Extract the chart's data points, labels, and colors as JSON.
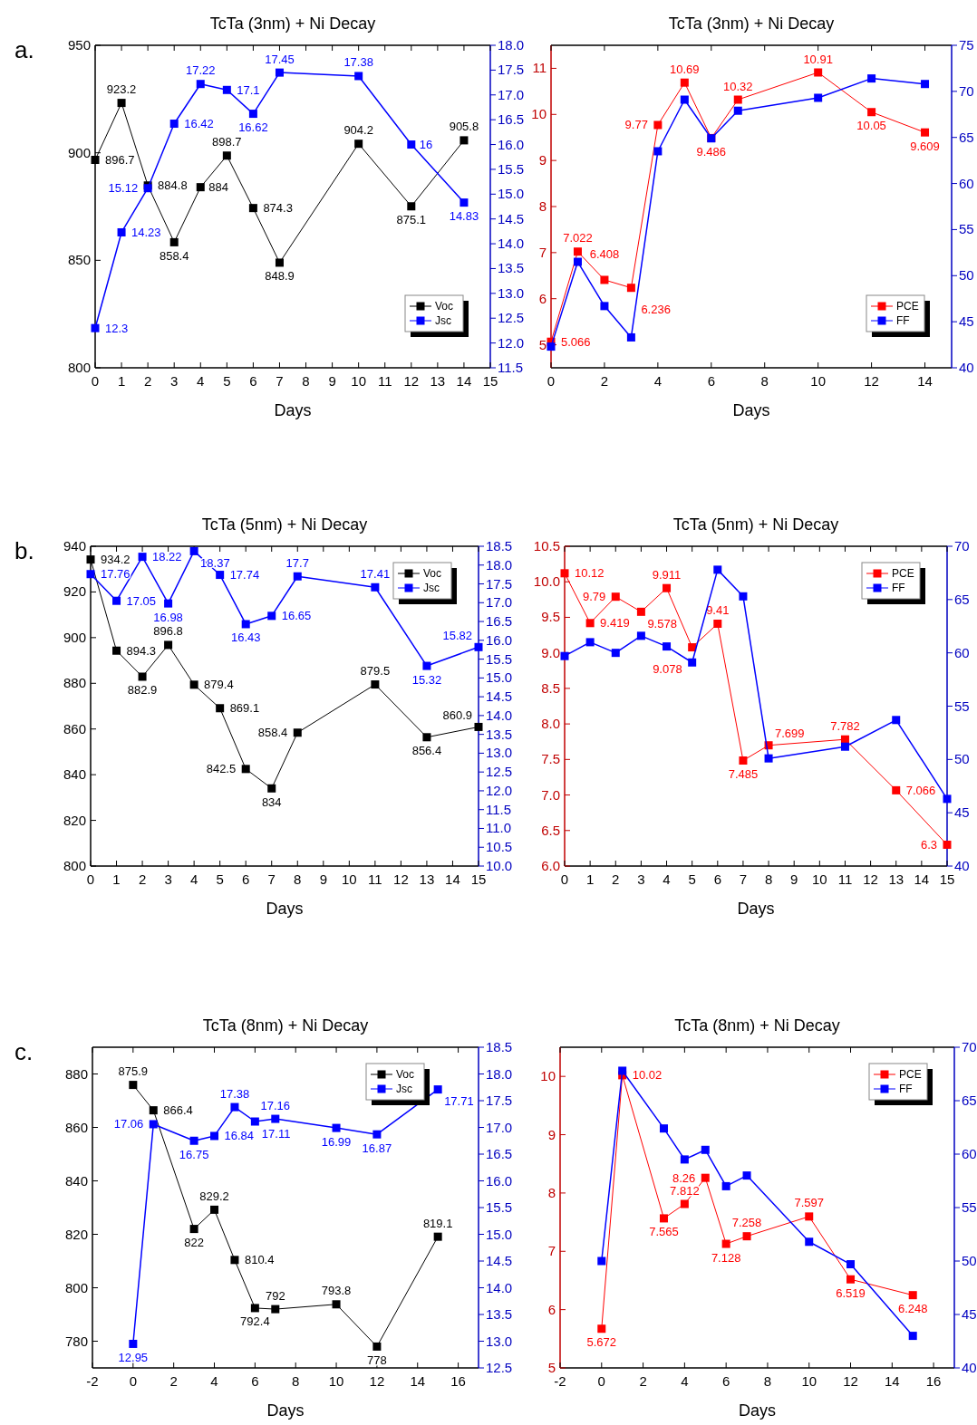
{
  "chart_data": [
    {
      "type": "line",
      "title": "TcTa (3nm) + Ni Decay",
      "xlabel": "Days",
      "annotations": [
        "a."
      ],
      "xlim": [
        0,
        15
      ],
      "xticks": [
        0,
        1,
        2,
        3,
        4,
        5,
        6,
        7,
        8,
        9,
        10,
        11,
        12,
        13,
        14,
        15
      ],
      "ylim": [
        800,
        950
      ],
      "yticks": [
        800,
        850,
        900,
        950
      ],
      "y2lim": [
        11.5,
        18
      ],
      "y2ticks": [
        11.5,
        {
          "value": 12,
          "label": "12.0"
        },
        12.5,
        {
          "value": 13,
          "label": "13.0"
        },
        13.5,
        {
          "value": 14,
          "label": "14.0"
        },
        14.5,
        {
          "value": 15,
          "label": "15.0"
        },
        15.5,
        {
          "value": 16,
          "label": "16.0"
        },
        16.5,
        {
          "value": 17,
          "label": "17.0"
        },
        17.5,
        {
          "value": 18,
          "label": "18.0"
        }
      ],
      "legend": "bottom right",
      "marker": "square",
      "series": [
        {
          "name": "Voc",
          "color": "#000000",
          "x": [
            0,
            1,
            2,
            3,
            4,
            5,
            6,
            7,
            10,
            12,
            14
          ],
          "values": [
            896.7,
            923.2,
            884.8,
            858.4,
            884,
            898.7,
            874.3,
            848.9,
            904.2,
            875.1,
            905.8
          ],
          "value_labels": [
            "896.7",
            "923.2",
            "884.8",
            "858.4",
            "884",
            "898.7",
            "874.3",
            "848.9",
            "904.2",
            "875.1",
            "905.8"
          ]
        },
        {
          "name": "Jsc",
          "color": "#0000ff",
          "axis": "y2",
          "x": [
            0,
            1,
            2,
            3,
            4,
            5,
            6,
            7,
            10,
            12,
            14
          ],
          "values": [
            12.3,
            14.23,
            15.12,
            16.42,
            17.22,
            17.1,
            16.62,
            17.45,
            17.38,
            16,
            14.83
          ],
          "value_labels": [
            "12.3",
            "14.23",
            "15.12",
            "16.42",
            "17.22",
            "17.1",
            "16.62",
            "17.45",
            "17.38",
            "16",
            "14.83"
          ]
        }
      ]
    },
    {
      "type": "line",
      "title": "TcTa (3nm) + Ni Decay",
      "xlabel": "Days",
      "xlim": [
        0,
        15
      ],
      "xticks": [
        0,
        2,
        4,
        6,
        8,
        10,
        12,
        14
      ],
      "ylim": [
        4.5,
        11.5
      ],
      "yticks": [
        5,
        6,
        7,
        8,
        9,
        10,
        11
      ],
      "y2lim": [
        40,
        75
      ],
      "y2ticks": [
        40,
        45,
        50,
        55,
        60,
        65,
        70,
        75
      ],
      "legend": "bottom right",
      "marker": "square",
      "series": [
        {
          "name": "PCE",
          "color": "#ff0000",
          "x": [
            0,
            1,
            2,
            3,
            4,
            5,
            6,
            7,
            10,
            12,
            14
          ],
          "values": [
            5.066,
            7.022,
            6.408,
            6.236,
            9.77,
            10.69,
            9.486,
            10.32,
            10.91,
            10.05,
            9.609
          ],
          "value_labels": [
            "5.066",
            "7.022",
            "6.408",
            "6.236",
            "9.77",
            "10.69",
            "9.486",
            "10.32",
            "10.91",
            "10.05",
            "9.609"
          ]
        },
        {
          "name": "FF",
          "color": "#0000ff",
          "axis": "y2",
          "x": [
            0,
            1,
            2,
            3,
            4,
            5,
            6,
            7,
            10,
            12,
            14
          ],
          "values": [
            42.3,
            51.5,
            46.7,
            43.3,
            63.5,
            69.1,
            64.9,
            67.9,
            69.3,
            71.4,
            70.8
          ]
        }
      ]
    },
    {
      "type": "line",
      "title": "TcTa (5nm) + Ni Decay",
      "xlabel": "Days",
      "annotations": [
        "b."
      ],
      "xlim": [
        0,
        15
      ],
      "xticks": [
        0,
        1,
        2,
        3,
        4,
        5,
        6,
        7,
        8,
        9,
        10,
        11,
        12,
        13,
        14,
        15
      ],
      "ylim": [
        800,
        940
      ],
      "yticks": [
        800,
        820,
        840,
        860,
        880,
        900,
        920,
        940
      ],
      "y2lim": [
        10,
        18.5
      ],
      "y2ticks": [
        {
          "value": 10,
          "label": "10.0"
        },
        10.5,
        {
          "value": 11,
          "label": "11.0"
        },
        11.5,
        {
          "value": 12,
          "label": "12.0"
        },
        12.5,
        {
          "value": 13,
          "label": "13.0"
        },
        13.5,
        {
          "value": 14,
          "label": "14.0"
        },
        14.5,
        {
          "value": 15,
          "label": "15.0"
        },
        15.5,
        {
          "value": 16,
          "label": "16.0"
        },
        16.5,
        {
          "value": 17,
          "label": "17.0"
        },
        17.5,
        {
          "value": 18,
          "label": "18.0"
        },
        18.5
      ],
      "legend": "top right",
      "marker": "square",
      "series": [
        {
          "name": "Voc",
          "color": "#000000",
          "x": [
            0,
            1,
            2,
            3,
            4,
            5,
            6,
            7,
            8,
            11,
            13,
            15
          ],
          "values": [
            934.2,
            894.3,
            882.9,
            896.8,
            879.4,
            869.1,
            842.5,
            834,
            858.4,
            879.5,
            856.4,
            860.9
          ],
          "value_labels": [
            "934.2",
            "894.3",
            "882.9",
            "896.8",
            "879.4",
            "869.1",
            "842.5",
            "834",
            "858.4",
            "879.5",
            "856.4",
            "860.9"
          ]
        },
        {
          "name": "Jsc",
          "color": "#0000ff",
          "axis": "y2",
          "x": [
            0,
            1,
            2,
            3,
            4,
            5,
            6,
            7,
            8,
            11,
            13,
            15
          ],
          "values": [
            17.76,
            17.05,
            18.22,
            16.98,
            18.37,
            17.74,
            16.43,
            16.65,
            17.7,
            17.41,
            15.32,
            15.82
          ],
          "value_labels": [
            "17.76",
            "17.05",
            "18.22",
            "16.98",
            "18.37",
            "17.74",
            "16.43",
            "16.65",
            "17.7",
            "17.41",
            "15.32",
            "15.82"
          ]
        }
      ]
    },
    {
      "type": "line",
      "title": "TcTa (5nm) + Ni Decay",
      "xlabel": "Days",
      "xlim": [
        0,
        15
      ],
      "xticks": [
        0,
        1,
        2,
        3,
        4,
        5,
        6,
        7,
        8,
        9,
        10,
        11,
        12,
        13,
        14,
        15
      ],
      "ylim": [
        6,
        10.5
      ],
      "yticks": [
        {
          "value": 6,
          "label": "6.0"
        },
        6.5,
        {
          "value": 7,
          "label": "7.0"
        },
        7.5,
        {
          "value": 8,
          "label": "8.0"
        },
        8.5,
        {
          "value": 9,
          "label": "9.0"
        },
        9.5,
        {
          "value": 10,
          "label": "10.0"
        },
        10.5
      ],
      "y2lim": [
        40,
        70
      ],
      "y2ticks": [
        40,
        45,
        50,
        55,
        60,
        65,
        70
      ],
      "legend": "top right",
      "marker": "square",
      "series": [
        {
          "name": "PCE",
          "color": "#ff0000",
          "x": [
            0,
            1,
            2,
            3,
            4,
            5,
            6,
            7,
            8,
            11,
            13,
            15
          ],
          "values": [
            10.12,
            9.419,
            9.79,
            9.578,
            9.911,
            9.078,
            9.41,
            7.485,
            7.699,
            7.782,
            7.066,
            6.3
          ],
          "value_labels": [
            "10.12",
            "9.419",
            "9.79",
            "9.578",
            "9.911",
            "9.078",
            "9.41",
            "7.485",
            "7.699",
            "7.782",
            "7.066",
            "6.3"
          ]
        },
        {
          "name": "FF",
          "color": "#0000ff",
          "axis": "y2",
          "x": [
            0,
            1,
            2,
            3,
            4,
            5,
            6,
            7,
            8,
            11,
            13,
            15
          ],
          "values": [
            59.7,
            61.0,
            60.0,
            61.6,
            60.6,
            59.1,
            67.8,
            65.3,
            50.1,
            51.2,
            53.7,
            46.3
          ]
        }
      ]
    },
    {
      "type": "line",
      "title": "TcTa (8nm) + Ni Decay",
      "xlabel": "Days",
      "annotations": [
        "c."
      ],
      "xlim": [
        -2,
        17
      ],
      "xticks": [
        -2,
        0,
        2,
        4,
        6,
        8,
        10,
        12,
        14,
        16
      ],
      "ylim": [
        770,
        890
      ],
      "yticks": [
        780,
        800,
        820,
        840,
        860,
        880
      ],
      "y2lim": [
        12.5,
        18.5
      ],
      "y2ticks": [
        12.5,
        {
          "value": 13,
          "label": "13.0"
        },
        13.5,
        {
          "value": 14,
          "label": "14.0"
        },
        14.5,
        {
          "value": 15,
          "label": "15.0"
        },
        15.5,
        {
          "value": 16,
          "label": "16.0"
        },
        16.5,
        {
          "value": 17,
          "label": "17.0"
        },
        17.5,
        {
          "value": 18,
          "label": "18.0"
        },
        18.5
      ],
      "legend": "top right",
      "marker": "square",
      "series": [
        {
          "name": "Voc",
          "color": "#000000",
          "x": [
            0,
            1,
            3,
            4,
            5,
            6,
            7,
            10,
            12,
            15
          ],
          "values": [
            875.9,
            866.4,
            822,
            829.2,
            810.4,
            792.4,
            792,
            793.8,
            778,
            819.1
          ],
          "value_labels": [
            "875.9",
            "866.4",
            "822",
            "829.2",
            "810.4",
            "792.4",
            "792",
            "793.8",
            "778",
            "819.1"
          ]
        },
        {
          "name": "Jsc",
          "color": "#0000ff",
          "axis": "y2",
          "x": [
            0,
            1,
            3,
            4,
            5,
            6,
            7,
            10,
            12,
            15
          ],
          "values": [
            12.95,
            17.06,
            16.75,
            16.84,
            17.38,
            17.11,
            17.16,
            16.99,
            16.87,
            17.71
          ],
          "value_labels": [
            "12.95",
            "17.06",
            "16.75",
            "16.84",
            "17.38",
            "17.11",
            "17.16",
            "16.99",
            "16.87",
            "17.71"
          ]
        }
      ]
    },
    {
      "type": "line",
      "title": "TcTa (8nm) + Ni Decay",
      "xlabel": "Days",
      "xlim": [
        -2,
        17
      ],
      "xticks": [
        -2,
        0,
        2,
        4,
        6,
        8,
        10,
        12,
        14,
        16
      ],
      "ylim": [
        5,
        10.5
      ],
      "yticks": [
        5,
        6,
        7,
        8,
        9,
        10
      ],
      "y2lim": [
        40,
        70
      ],
      "y2ticks": [
        40,
        45,
        50,
        55,
        60,
        65,
        70
      ],
      "legend": "top right",
      "marker": "square",
      "series": [
        {
          "name": "PCE",
          "color": "#ff0000",
          "x": [
            0,
            1,
            3,
            4,
            5,
            6,
            7,
            10,
            12,
            15
          ],
          "values": [
            5.672,
            10.02,
            7.565,
            7.812,
            8.26,
            7.128,
            7.258,
            7.597,
            6.519,
            6.248
          ],
          "value_labels": [
            "5.672",
            "10.02",
            "7.565",
            "7.812",
            "8.26",
            "7.128",
            "7.258",
            "7.597",
            "6.519",
            "6.248"
          ]
        },
        {
          "name": "FF",
          "color": "#0000ff",
          "axis": "y2",
          "x": [
            0,
            1,
            3,
            4,
            5,
            6,
            7,
            10,
            12,
            15
          ],
          "values": [
            50.0,
            67.8,
            62.4,
            59.5,
            60.4,
            57.0,
            58.0,
            51.8,
            49.7,
            43.0
          ]
        }
      ]
    }
  ]
}
